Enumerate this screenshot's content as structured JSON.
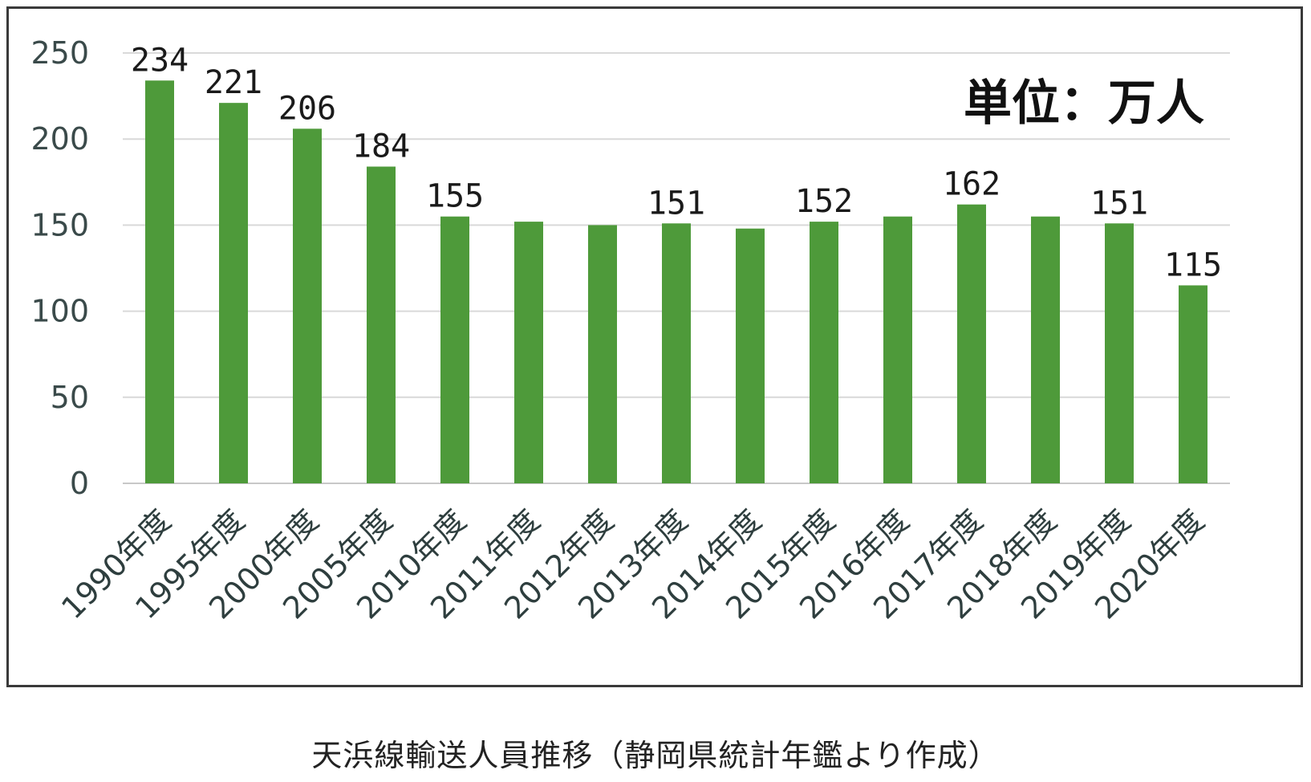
{
  "chart_data": {
    "type": "bar",
    "title": "",
    "xlabel": "",
    "ylabel": "",
    "unit_note": "単位：万人",
    "categories": [
      "1990年度",
      "1995年度",
      "2000年度",
      "2005年度",
      "2010年度",
      "2011年度",
      "2012年度",
      "2013年度",
      "2014年度",
      "2015年度",
      "2016年度",
      "2017年度",
      "2018年度",
      "2019年度",
      "2020年度"
    ],
    "values": [
      234,
      221,
      206,
      184,
      155,
      152,
      150,
      151,
      148,
      152,
      155,
      162,
      155,
      151,
      115
    ],
    "data_labels": [
      "234",
      "221",
      "206",
      "184",
      "155",
      "",
      "",
      "151",
      "",
      "152",
      "",
      "162",
      "",
      "151",
      "115"
    ],
    "yticks": [
      0,
      50,
      100,
      150,
      200,
      250
    ],
    "ylim": [
      0,
      250
    ],
    "grid": true,
    "bar_color": "#4e9a3a",
    "grid_color": "#d9d9d9"
  },
  "caption": "天浜線輸送人員推移（静岡県統計年鑑より作成）"
}
